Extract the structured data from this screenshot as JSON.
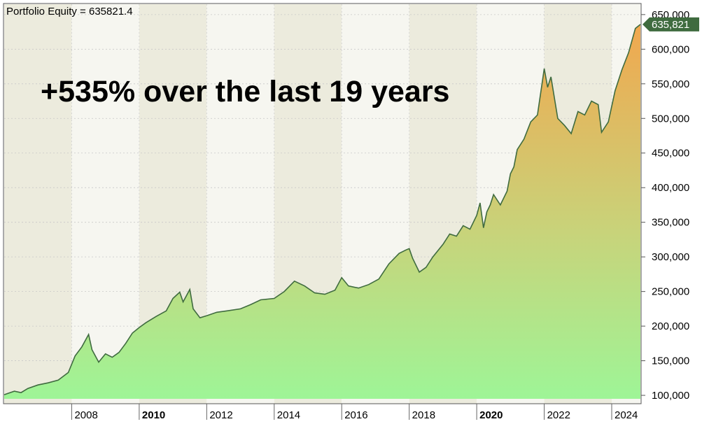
{
  "chart_data": {
    "type": "area",
    "legend": {
      "label": "Portfolio Equity = 635821.4",
      "position": "top-left"
    },
    "annotation": "+535% over the last 19 years",
    "last_value_label": "635,821",
    "y_axis": {
      "side": "right",
      "ylim": [
        95000,
        665000
      ],
      "ticks": [
        100000,
        150000,
        200000,
        250000,
        300000,
        350000,
        400000,
        450000,
        500000,
        550000,
        600000,
        650000
      ],
      "tick_labels": [
        "100,000",
        "150,000",
        "200,000",
        "250,000",
        "300,000",
        "350,000",
        "400,000",
        "450,000",
        "500,000",
        "550,000",
        "600,000",
        "650,000"
      ]
    },
    "x_axis": {
      "xlim": [
        2006.0,
        2024.85
      ],
      "ticks": [
        2008,
        2010,
        2012,
        2014,
        2016,
        2018,
        2020,
        2022,
        2024
      ],
      "tick_labels": [
        "2008",
        "2010",
        "2012",
        "2014",
        "2016",
        "2018",
        "2020",
        "2022",
        "2024"
      ],
      "bold_ticks": [
        "2010",
        "2020"
      ]
    },
    "grid": true,
    "series": [
      {
        "x": [
          2006.0,
          2006.3,
          2006.5,
          2006.7,
          2007.0,
          2007.3,
          2007.6,
          2007.9,
          2008.1,
          2008.3,
          2008.5,
          2008.6,
          2008.8,
          2009.0,
          2009.2,
          2009.4,
          2009.6,
          2009.8,
          2010.0,
          2010.2,
          2010.5,
          2010.8,
          2011.0,
          2011.2,
          2011.3,
          2011.5,
          2011.6,
          2011.8,
          2012.0,
          2012.3,
          2012.6,
          2013.0,
          2013.3,
          2013.6,
          2014.0,
          2014.3,
          2014.6,
          2014.9,
          2015.2,
          2015.5,
          2015.8,
          2016.0,
          2016.2,
          2016.5,
          2016.8,
          2017.1,
          2017.4,
          2017.7,
          2017.9,
          2018.0,
          2018.1,
          2018.3,
          2018.5,
          2018.7,
          2019.0,
          2019.2,
          2019.4,
          2019.6,
          2019.8,
          2020.0,
          2020.1,
          2020.2,
          2020.3,
          2020.4,
          2020.5,
          2020.7,
          2020.9,
          2021.0,
          2021.1,
          2021.2,
          2021.4,
          2021.6,
          2021.8,
          2022.0,
          2022.1,
          2022.2,
          2022.4,
          2022.6,
          2022.8,
          2023.0,
          2023.2,
          2023.4,
          2023.6,
          2023.7,
          2023.9,
          2024.1,
          2024.3,
          2024.5,
          2024.7,
          2024.85
        ],
        "values": [
          101000,
          106000,
          104000,
          110000,
          115000,
          118000,
          122000,
          133000,
          157000,
          170000,
          188000,
          166000,
          148000,
          160000,
          155000,
          162000,
          175000,
          190000,
          198000,
          205000,
          214000,
          222000,
          240000,
          249000,
          235000,
          253000,
          225000,
          212000,
          215000,
          220000,
          222000,
          225000,
          231000,
          238000,
          240000,
          250000,
          265000,
          258000,
          248000,
          246000,
          252000,
          270000,
          258000,
          255000,
          260000,
          268000,
          290000,
          305000,
          310000,
          312000,
          298000,
          278000,
          285000,
          300000,
          318000,
          333000,
          330000,
          345000,
          340000,
          360000,
          378000,
          342000,
          365000,
          375000,
          390000,
          375000,
          395000,
          420000,
          430000,
          455000,
          470000,
          495000,
          505000,
          572000,
          545000,
          560000,
          500000,
          490000,
          478000,
          510000,
          505000,
          525000,
          520000,
          480000,
          495000,
          540000,
          570000,
          595000,
          630000,
          635821.4
        ]
      }
    ]
  },
  "colors": {
    "line": "#3f6b3f",
    "fill_top": "#f0a84f",
    "fill_bottom": "#9ef597",
    "band_dark": "#ecebdd",
    "band_light": "#f6f6f0",
    "label_bg": "#3f6b3f"
  }
}
